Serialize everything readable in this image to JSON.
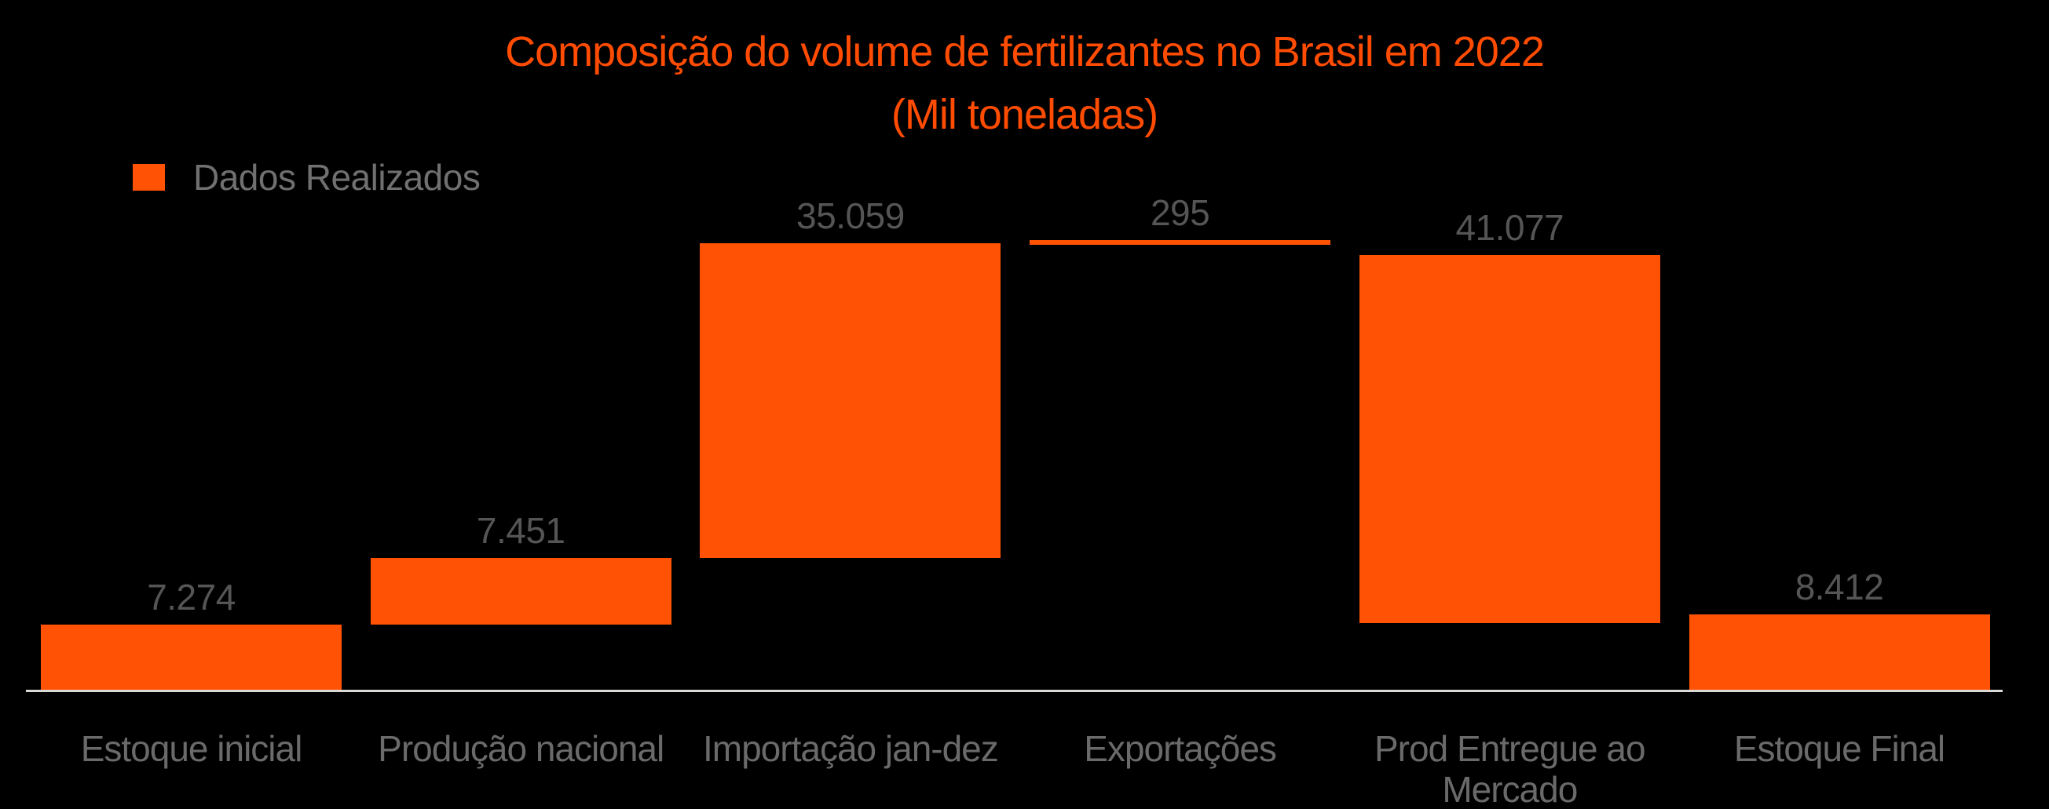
{
  "title": {
    "line1": "Composição do volume de fertilizantes no Brasil em 2022",
    "line2": "(Mil toneladas)"
  },
  "legend": {
    "label": "Dados Realizados"
  },
  "colors": {
    "background": "#000000",
    "bar": "#FF5204",
    "title": "#FF4C02",
    "value_label": "#555555",
    "category_label": "#6A6A6A",
    "legend_label": "#707070",
    "axis_line": "#DAD9D5"
  },
  "chart_data": {
    "type": "bar",
    "subtype": "waterfall",
    "title": "Composição do volume de fertilizantes no Brasil em 2022",
    "subtitle": "(Mil toneladas)",
    "unit": "Mil toneladas",
    "categories": [
      "Estoque inicial",
      "Produção nacional",
      "Importação jan-dez",
      "Exportações",
      "Prod Entregue ao Mercado",
      "Estoque Final"
    ],
    "values": [
      7274,
      7451,
      35059,
      295,
      41077,
      8412
    ],
    "value_labels": [
      "7.274",
      "7.451",
      "35.059",
      "295",
      "41.077",
      "8.412"
    ],
    "bar_spans": [
      {
        "base": 0,
        "top": 7274
      },
      {
        "base": 7274,
        "top": 14725
      },
      {
        "base": 14725,
        "top": 49784
      },
      {
        "base": 49784,
        "top": 50079
      },
      {
        "base": 7400,
        "top": 48477
      },
      {
        "base": 0,
        "top": 8412
      }
    ],
    "series": [
      {
        "name": "Dados Realizados",
        "color": "#FF5204"
      }
    ],
    "ylim": [
      0,
      50079
    ],
    "grid": false,
    "y_axis_visible": false,
    "legend_position": "top-left"
  }
}
